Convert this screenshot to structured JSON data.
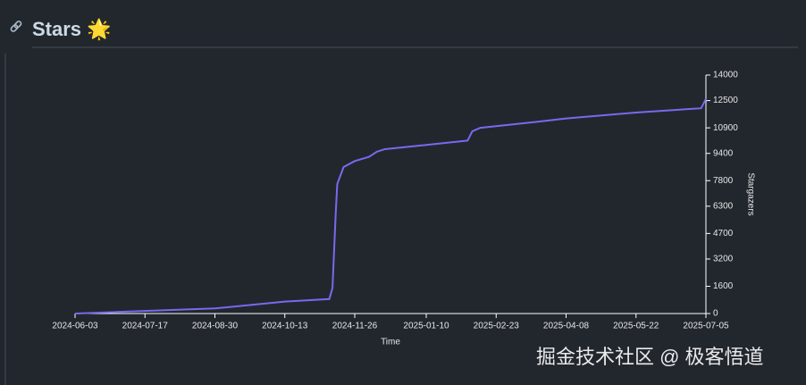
{
  "title": "Stars 🌟",
  "watermark": "掘金技术社区 @ 极客悟道",
  "chart_data": {
    "type": "line",
    "xlabel": "Time",
    "ylabel": "Stargazers",
    "x": [
      "2024-06-03",
      "2024-08-30",
      "2024-10-13",
      "2024-11-10",
      "2024-11-12",
      "2024-11-14",
      "2024-11-15",
      "2024-11-19",
      "2024-11-26",
      "2024-12-05",
      "2024-12-10",
      "2024-12-15",
      "2025-01-10",
      "2025-02-05",
      "2025-02-08",
      "2025-02-13",
      "2025-03-20",
      "2025-04-08",
      "2025-05-22",
      "2025-07-02",
      "2025-07-05"
    ],
    "series": [
      {
        "name": "Stargazers",
        "color": "#7b68ee",
        "values": [
          0,
          300,
          700,
          850,
          1500,
          5800,
          7600,
          8600,
          8950,
          9200,
          9500,
          9650,
          9900,
          10150,
          10700,
          10900,
          11250,
          11450,
          11800,
          12050,
          12600
        ]
      }
    ],
    "xlim": [
      "2024-06-03",
      "2025-07-05"
    ],
    "xticks": [
      "2024-06-03",
      "2024-07-17",
      "2024-08-30",
      "2024-10-13",
      "2024-11-26",
      "2025-01-10",
      "2025-02-23",
      "2025-04-08",
      "2025-05-22",
      "2025-07-05"
    ],
    "ylim": [
      0,
      14000
    ],
    "yticks": [
      0,
      1600,
      3200,
      4700,
      6300,
      7800,
      9400,
      10900,
      12500,
      14000
    ]
  }
}
